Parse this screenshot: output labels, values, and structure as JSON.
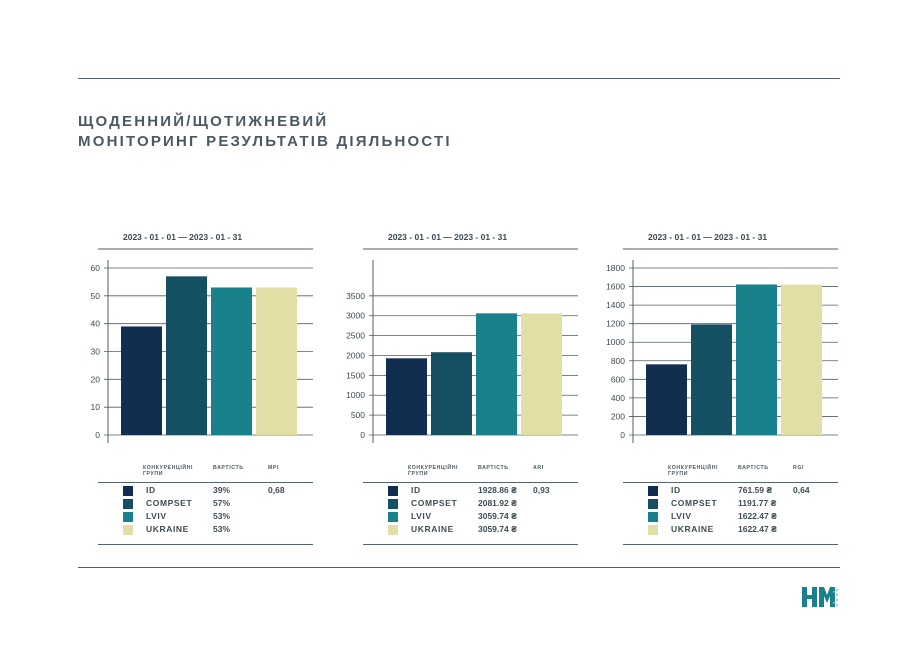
{
  "title": {
    "line1": "ЩОДЕННИЙ/ЩОТИЖНЕВИЙ",
    "line2": "МОНІТОРИНГ РЕЗУЛЬТАТІВ ДІЯЛЬНОСТІ"
  },
  "colors": {
    "id": "#112e50",
    "compset": "#154f62",
    "lviv": "#18818c",
    "ukraine": "#e1dfa5",
    "rule": "#4f5f63"
  },
  "logo": {
    "text": "HM",
    "icon": "hm-logo"
  },
  "chart_data": [
    {
      "type": "bar",
      "date_range": "2023 - 01 - 01 — 2023 - 01 - 31",
      "categories": [
        "ID",
        "COMPSET",
        "LVIV",
        "UKRAINE"
      ],
      "values": [
        39,
        57,
        53,
        53
      ],
      "ylim": [
        0,
        60
      ],
      "yticks": [
        "0",
        "10",
        "20",
        "30",
        "40",
        "50",
        "60"
      ],
      "legend": {
        "col_group": "КОНКУРЕНЦІЙНІ ГРУПИ",
        "col_value": "ВАРТІСТЬ",
        "col_index": "MPI",
        "index_value": "0,68",
        "rows": [
          {
            "name": "ID",
            "value": "39%"
          },
          {
            "name": "COMPSET",
            "value": "57%"
          },
          {
            "name": "LVIV",
            "value": "53%"
          },
          {
            "name": "UKRAINE",
            "value": "53%"
          }
        ]
      }
    },
    {
      "type": "bar",
      "date_range": "2023 - 01 - 01 — 2023 - 01 - 31",
      "categories": [
        "ID",
        "COMPSET",
        "LVIV",
        "UKRAINE"
      ],
      "values": [
        1928.86,
        2081.92,
        3059.74,
        3059.74
      ],
      "ylim": [
        0,
        4200
      ],
      "yticks": [
        "0",
        "500",
        "1000",
        "1500",
        "2000",
        "2500",
        "3000",
        "3500"
      ],
      "legend": {
        "col_group": "КОНКУРЕНЦІЙНІ ГРУПИ",
        "col_value": "ВАРТІСТЬ",
        "col_index": "ARI",
        "index_value": "0,93",
        "rows": [
          {
            "name": "ID",
            "value": "1928.86 ₴"
          },
          {
            "name": "COMPSET",
            "value": "2081.92 ₴"
          },
          {
            "name": "LVIV",
            "value": "3059.74 ₴"
          },
          {
            "name": "UKRAINE",
            "value": "3059.74 ₴"
          }
        ]
      }
    },
    {
      "type": "bar",
      "date_range": "2023 - 01 - 01 — 2023 - 01 - 31",
      "categories": [
        "ID",
        "COMPSET",
        "LVIV",
        "UKRAINE"
      ],
      "values": [
        761.59,
        1191.77,
        1622.47,
        1622.47
      ],
      "ylim": [
        0,
        1800
      ],
      "yticks": [
        "0",
        "200",
        "400",
        "600",
        "800",
        "1000",
        "1200",
        "1400",
        "1600",
        "1800"
      ],
      "legend": {
        "col_group": "КОНКУРЕНЦІЙНІ ГРУПИ",
        "col_value": "ВАРТІСТЬ",
        "col_index": "RGI",
        "index_value": "0,64",
        "rows": [
          {
            "name": "ID",
            "value": "761.59 ₴"
          },
          {
            "name": "COMPSET",
            "value": "1191.77 ₴"
          },
          {
            "name": "LVIV",
            "value": "1622.47 ₴"
          },
          {
            "name": "UKRAINE",
            "value": "1622.47 ₴"
          }
        ]
      }
    }
  ]
}
